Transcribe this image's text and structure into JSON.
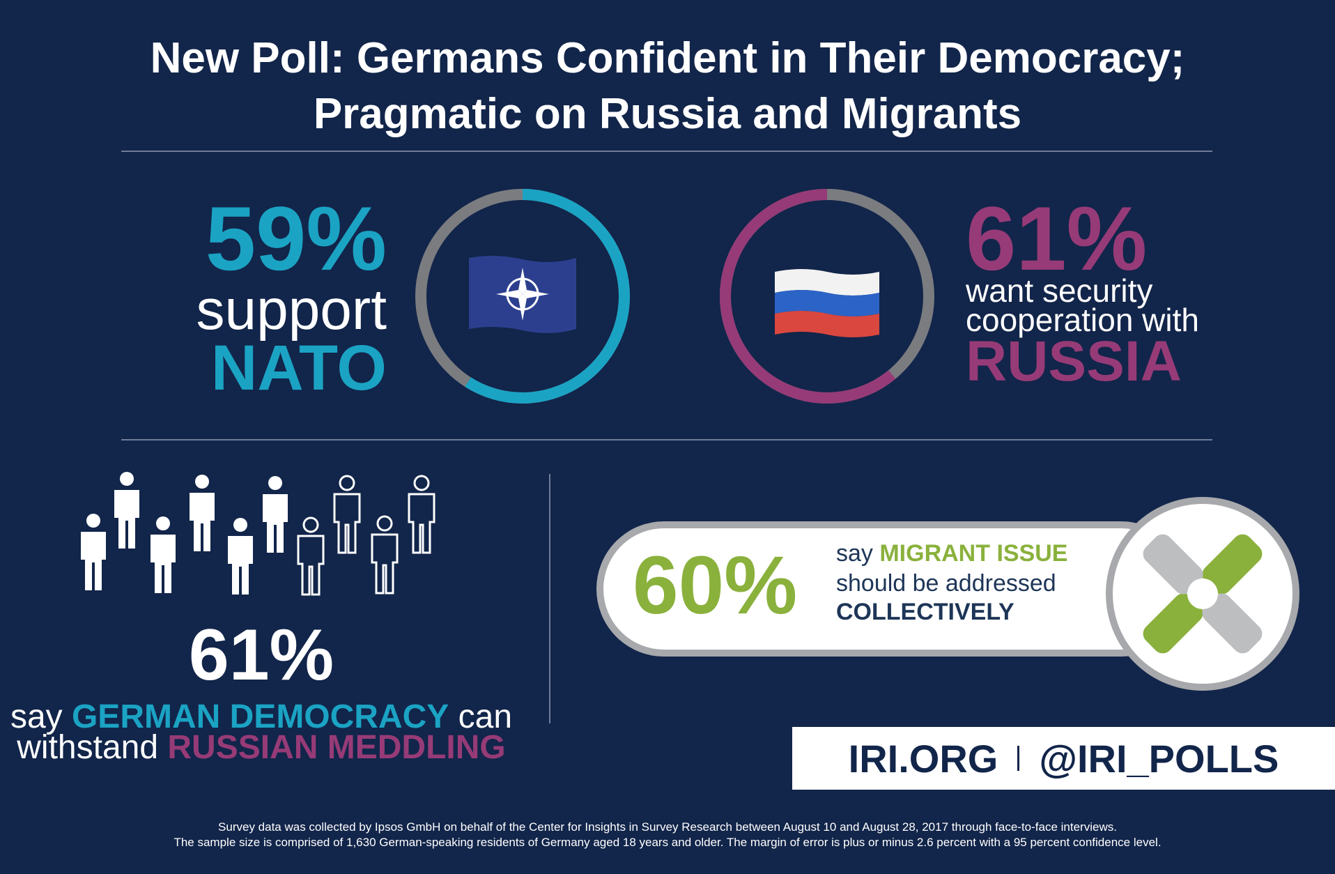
{
  "title": {
    "line1": "New Poll: Germans Confident in Their Democracy;",
    "line2": "Pragmatic on Russia and Migrants"
  },
  "colors": {
    "background": "#12254a",
    "nato_cyan": "#1ba3c4",
    "russia_purple": "#963b77",
    "migrant_green": "#8ab13c",
    "ring_gray": "#7a7c80"
  },
  "nato": {
    "percent_label": "59%",
    "line1": "support",
    "line2": "NATO",
    "icon": "nato-flag-icon"
  },
  "russia": {
    "percent_label": "61%",
    "line1": "want security",
    "line2": "cooperation with",
    "line3": "RUSSIA",
    "icon": "russia-flag-icon"
  },
  "democracy": {
    "percent_label": "61%",
    "line1_prefix": "say ",
    "line1_highlight": "GERMAN DEMOCRACY",
    "line1_suffix": " can",
    "line2_prefix": "withstand ",
    "line2_highlight": "RUSSIAN MEDDLING",
    "people_total": 10,
    "people_filled": 6,
    "icon": "person-icon"
  },
  "migrants": {
    "percent_label": "60%",
    "line1_prefix": "say ",
    "line1_highlight": "MIGRANT ISSUE",
    "line2": "should be addressed",
    "line3": "COLLECTIVELY",
    "icon": "linked-hands-icon"
  },
  "footer": {
    "site": "IRI.ORG",
    "handle": "@IRI_POLLS"
  },
  "note": {
    "line1": "Survey data was collected by Ipsos GmbH on behalf of the Center for Insights in Survey Research between August 10 and August 28, 2017 through face-to-face interviews.",
    "line2": "The sample size is comprised of 1,630 German-speaking residents of Germany aged 18 years and older. The margin of error is plus or minus 2.6 percent with a 95 percent confidence level."
  },
  "chart_data": [
    {
      "type": "pie",
      "labels": [
        "support NATO",
        "other"
      ],
      "values": [
        59,
        41
      ],
      "colors": [
        "#1ba3c4",
        "#7a7c80"
      ],
      "style": "donut"
    },
    {
      "type": "pie",
      "labels": [
        "want security cooperation with RUSSIA",
        "other"
      ],
      "values": [
        61,
        39
      ],
      "colors": [
        "#963b77",
        "#7a7c80"
      ],
      "style": "donut"
    },
    {
      "type": "table",
      "labels": [
        "say GERMAN DEMOCRACY can withstand RUSSIAN MEDDLING"
      ],
      "values": [
        61
      ]
    },
    {
      "type": "table",
      "labels": [
        "say MIGRANT ISSUE should be addressed COLLECTIVELY"
      ],
      "values": [
        60
      ]
    }
  ]
}
